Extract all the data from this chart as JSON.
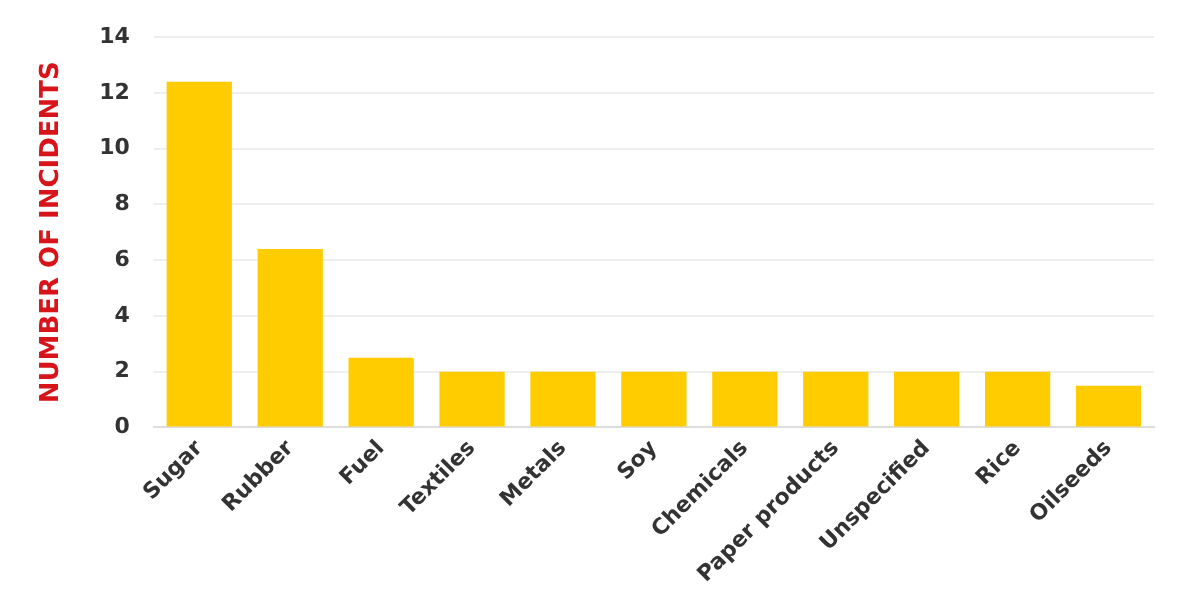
{
  "chart_data": {
    "type": "bar",
    "ylabel": "NUMBER OF INCIDENTS",
    "categories": [
      "Sugar",
      "Rubber",
      "Fuel",
      "Textiles",
      "Metals",
      "Soy",
      "Chemicals",
      "Paper products",
      "Unspecified",
      "Rice",
      "Oilseeds"
    ],
    "values": [
      12.4,
      6.4,
      2.5,
      2,
      2,
      2,
      2,
      2,
      2,
      2,
      1.5
    ],
    "color": "#ffcc00",
    "ylim": [
      0,
      14
    ],
    "yticks": [
      0,
      2,
      4,
      6,
      8,
      10,
      12,
      14
    ],
    "grid": "y",
    "legend": false
  }
}
